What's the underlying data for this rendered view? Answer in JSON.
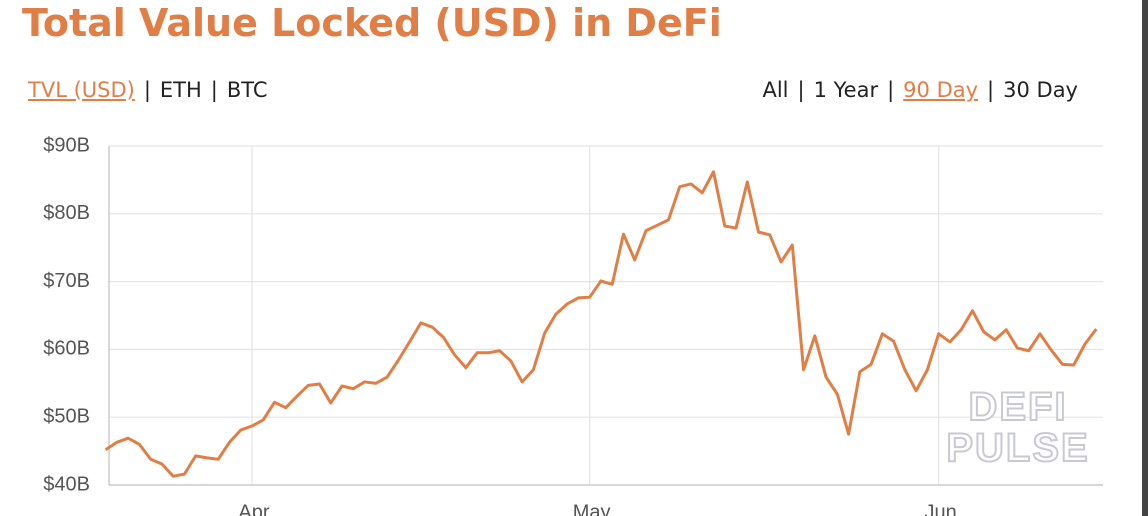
{
  "chart_data": {
    "type": "line",
    "title": "Total Value Locked (USD) in DeFi",
    "metric_tabs": [
      "TVL (USD)",
      "ETH",
      "BTC"
    ],
    "range_tabs": [
      "All",
      "1 Year",
      "90 Day",
      "30 Day"
    ],
    "separator": "|",
    "selected_metric": 0,
    "selected_range": 2,
    "watermark": [
      "DEFI",
      "PULSE"
    ],
    "x": [
      -13,
      -12,
      -11,
      -10,
      -9,
      -8,
      -7,
      -6,
      -5,
      -4,
      -3,
      -2,
      -1,
      0,
      1,
      2,
      3,
      4,
      5,
      6,
      7,
      8,
      9,
      10,
      11,
      12,
      13,
      14,
      15,
      16,
      17,
      18,
      19,
      20,
      21,
      22,
      23,
      24,
      25,
      26,
      27,
      28,
      29,
      30,
      31,
      32,
      33,
      34,
      35,
      36,
      37,
      38,
      39,
      40,
      41,
      42,
      43,
      44,
      45,
      46,
      47,
      48,
      49,
      50,
      51,
      52,
      53,
      54,
      55,
      56,
      57,
      58,
      59,
      60,
      61,
      62,
      63,
      64,
      65,
      66,
      67,
      68,
      69,
      70,
      71,
      72,
      73,
      74,
      75
    ],
    "series": [
      {
        "name": "TVL (USD)",
        "color": "#e07e45",
        "values": [
          45.2,
          46.3,
          46.9,
          46.0,
          43.8,
          43.1,
          41.3,
          41.6,
          44.3,
          44.0,
          43.8,
          46.3,
          48.1,
          48.7,
          49.6,
          52.2,
          51.4,
          53.1,
          54.7,
          54.9,
          52.1,
          54.6,
          54.2,
          55.2,
          55.0,
          55.9,
          58.4,
          61.1,
          63.9,
          63.3,
          61.8,
          59.2,
          57.3,
          59.5,
          59.5,
          59.8,
          58.3,
          55.2,
          57.0,
          62.4,
          65.2,
          66.7,
          67.6,
          67.7,
          70.1,
          69.6,
          77.0,
          73.2,
          77.5,
          78.3,
          79.1,
          84.0,
          84.4,
          83.1,
          86.2,
          78.2,
          77.9,
          84.7,
          77.3,
          76.9,
          72.9,
          75.4,
          57.0,
          62.0,
          55.9,
          53.4,
          47.5,
          56.7,
          57.8,
          62.3,
          61.2,
          57.0,
          53.9,
          57.0,
          62.3,
          61.1,
          62.9,
          65.7,
          62.6,
          61.4,
          62.9,
          60.2,
          59.8,
          62.3,
          59.9,
          57.8,
          57.7,
          60.8,
          63.0
        ]
      }
    ],
    "xlim": [
      -12.7,
      75.6
    ],
    "xticks": [
      {
        "value": 0,
        "label": "Apr"
      },
      {
        "value": 30,
        "label": "May"
      },
      {
        "value": 61,
        "label": "Jun"
      }
    ],
    "ylim": [
      40,
      90
    ],
    "yticks": [
      {
        "value": 40,
        "label": "$40B"
      },
      {
        "value": 50,
        "label": "$50B"
      },
      {
        "value": 60,
        "label": "$60B"
      },
      {
        "value": 70,
        "label": "$70B"
      },
      {
        "value": 80,
        "label": "$80B"
      },
      {
        "value": 90,
        "label": "$90B"
      }
    ],
    "grid": true
  }
}
